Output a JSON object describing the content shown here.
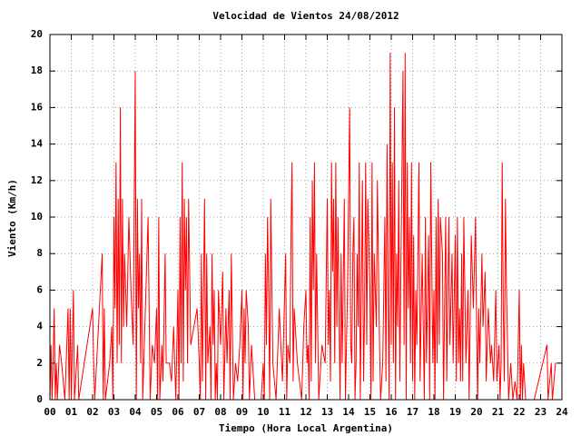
{
  "chart_data": {
    "type": "line",
    "title": "Velocidad de Vientos 24/08/2012",
    "x_label": "Tiempo (Hora Local Argentina)",
    "y_label": "Viento (Km/h)",
    "color": "#ff0000",
    "grid": true,
    "xlim": [
      0,
      24
    ],
    "ylim": [
      0,
      20
    ],
    "xticks": [
      {
        "value": 0,
        "label": "00"
      },
      {
        "value": 1,
        "label": "01"
      },
      {
        "value": 2,
        "label": "02"
      },
      {
        "value": 3,
        "label": "03"
      },
      {
        "value": 4,
        "label": "04"
      },
      {
        "value": 5,
        "label": "05"
      },
      {
        "value": 6,
        "label": "06"
      },
      {
        "value": 7,
        "label": "07"
      },
      {
        "value": 8,
        "label": "08"
      },
      {
        "value": 9,
        "label": "09"
      },
      10,
      11,
      12,
      13,
      14,
      15,
      16,
      17,
      18,
      19,
      20,
      21,
      22,
      23,
      24
    ],
    "yticks": [
      0,
      2,
      4,
      6,
      8,
      10,
      12,
      14,
      16,
      18,
      20
    ],
    "x": [
      0,
      0.05,
      0.1,
      0.15,
      0.2,
      0.25,
      0.3,
      0.35,
      0.45,
      0.55,
      0.7,
      0.85,
      0.9,
      0.95,
      1.0,
      1.05,
      1.1,
      1.15,
      1.3,
      1.35,
      2.0,
      2.05,
      2.1,
      2.45,
      2.5,
      2.55,
      2.6,
      2.8,
      2.9,
      2.95,
      3.0,
      3.05,
      3.1,
      3.15,
      3.2,
      3.25,
      3.3,
      3.35,
      3.4,
      3.45,
      3.5,
      3.6,
      3.7,
      3.8,
      3.9,
      4.0,
      4.05,
      4.1,
      4.15,
      4.2,
      4.25,
      4.3,
      4.35,
      4.6,
      4.7,
      4.8,
      4.9,
      5.0,
      5.05,
      5.1,
      5.15,
      5.25,
      5.3,
      5.4,
      5.45,
      5.6,
      5.7,
      5.8,
      5.9,
      6.0,
      6.05,
      6.1,
      6.15,
      6.2,
      6.25,
      6.3,
      6.35,
      6.4,
      6.45,
      6.5,
      6.6,
      6.9,
      7.0,
      7.05,
      7.1,
      7.15,
      7.2,
      7.25,
      7.3,
      7.35,
      7.4,
      7.5,
      7.55,
      7.6,
      7.65,
      7.7,
      7.75,
      7.8,
      7.85,
      7.9,
      8.0,
      8.1,
      8.15,
      8.25,
      8.3,
      8.4,
      8.45,
      8.5,
      8.6,
      8.7,
      8.8,
      8.9,
      9.0,
      9.05,
      9.1,
      9.15,
      9.2,
      9.3,
      9.35,
      9.45,
      9.6,
      9.9,
      10.0,
      10.05,
      10.1,
      10.15,
      10.2,
      10.25,
      10.3,
      10.35,
      10.45,
      10.6,
      10.75,
      10.9,
      11.05,
      11.1,
      11.15,
      11.25,
      11.3,
      11.35,
      11.4,
      11.45,
      11.6,
      11.8,
      11.9,
      12.0,
      12.05,
      12.1,
      12.15,
      12.2,
      12.25,
      12.3,
      12.35,
      12.4,
      12.45,
      12.5,
      12.6,
      12.75,
      12.9,
      13.0,
      13.05,
      13.1,
      13.15,
      13.2,
      13.25,
      13.3,
      13.35,
      13.4,
      13.45,
      13.5,
      13.6,
      13.65,
      13.7,
      13.8,
      13.85,
      13.95,
      14.05,
      14.1,
      14.15,
      14.2,
      14.25,
      14.3,
      14.35,
      14.4,
      14.45,
      14.5,
      14.55,
      14.6,
      14.65,
      14.7,
      14.75,
      14.8,
      14.85,
      14.9,
      15.0,
      15.05,
      15.1,
      15.15,
      15.2,
      15.3,
      15.35,
      15.45,
      15.5,
      15.6,
      15.7,
      15.75,
      15.8,
      15.85,
      15.9,
      15.95,
      16.0,
      16.05,
      16.1,
      16.15,
      16.2,
      16.25,
      16.3,
      16.35,
      16.4,
      16.45,
      16.55,
      16.6,
      16.65,
      16.7,
      16.75,
      16.8,
      16.85,
      16.9,
      16.95,
      17.0,
      17.05,
      17.1,
      17.15,
      17.2,
      17.3,
      17.35,
      17.45,
      17.5,
      17.55,
      17.6,
      17.65,
      17.75,
      17.8,
      17.85,
      17.95,
      18.0,
      18.05,
      18.1,
      18.15,
      18.2,
      18.25,
      18.3,
      18.4,
      18.45,
      18.55,
      18.6,
      18.7,
      18.75,
      18.85,
      18.9,
      19.0,
      19.05,
      19.1,
      19.15,
      19.2,
      19.25,
      19.3,
      19.35,
      19.4,
      19.5,
      19.6,
      19.65,
      19.75,
      19.85,
      19.95,
      20.0,
      20.05,
      20.1,
      20.15,
      20.25,
      20.3,
      20.4,
      20.45,
      20.55,
      20.65,
      20.7,
      20.8,
      20.9,
      20.95,
      21.05,
      21.1,
      21.15,
      21.2,
      21.25,
      21.3,
      21.35,
      21.4,
      21.45,
      21.5,
      21.6,
      21.7,
      21.8,
      21.9,
      22.0,
      22.05,
      22.1,
      22.15,
      22.2,
      22.3,
      22.7,
      23.3,
      23.35,
      23.5,
      23.55,
      23.7
    ],
    "values": [
      0,
      3,
      0,
      2,
      5,
      0,
      2,
      0,
      3,
      2,
      0,
      5,
      0,
      5,
      0,
      3,
      6,
      0,
      3,
      0,
      5,
      2,
      0,
      8,
      0,
      5,
      0,
      2,
      4,
      0,
      10,
      5,
      13,
      2,
      11,
      3,
      16,
      2,
      11,
      4,
      8,
      4,
      10,
      6,
      3,
      18,
      0,
      11,
      5,
      8,
      2,
      11,
      0,
      10,
      0,
      3,
      2,
      5,
      0,
      10,
      0,
      3,
      1,
      8,
      2,
      2,
      1,
      4,
      0,
      6,
      0,
      10,
      2,
      13,
      1,
      11,
      6,
      10,
      2,
      11,
      3,
      5,
      2,
      0,
      8,
      1,
      6,
      11,
      0,
      8,
      2,
      4,
      0,
      8,
      3,
      6,
      0,
      2,
      0,
      6,
      3,
      7,
      0,
      5,
      2,
      6,
      0,
      8,
      0,
      2,
      1,
      3,
      6,
      0,
      5,
      2,
      6,
      4,
      0,
      3,
      0,
      0,
      2,
      0,
      8,
      3,
      10,
      6,
      0,
      11,
      2,
      0,
      5,
      1,
      8,
      0,
      3,
      2,
      9,
      13,
      1,
      5,
      2,
      0,
      4,
      6,
      2,
      3,
      0,
      10,
      1,
      12,
      6,
      13,
      2,
      8,
      0,
      3,
      2,
      11,
      3,
      6,
      1,
      13,
      7,
      11,
      2,
      13,
      4,
      10,
      0,
      8,
      2,
      11,
      0,
      6,
      16,
      3,
      2,
      8,
      10,
      0,
      2,
      8,
      4,
      13,
      0,
      6,
      12,
      1,
      5,
      13,
      3,
      11,
      6,
      0,
      13,
      1,
      8,
      4,
      12,
      3,
      0,
      2,
      10,
      1,
      14,
      6,
      0,
      19,
      3,
      13,
      2,
      16,
      0,
      8,
      4,
      12,
      1,
      7,
      18,
      3,
      19,
      0,
      13,
      5,
      10,
      2,
      13,
      1,
      9,
      0,
      6,
      3,
      13,
      1,
      8,
      4,
      0,
      10,
      2,
      9,
      0,
      13,
      2,
      6,
      0,
      10,
      2,
      11,
      3,
      10,
      8,
      0,
      10,
      1,
      10,
      3,
      8,
      2,
      9,
      1,
      10,
      2,
      5,
      1,
      8,
      1,
      10,
      2,
      6,
      0,
      9,
      5,
      10,
      4,
      0,
      5,
      2,
      8,
      4,
      7,
      1,
      5,
      2,
      3,
      1,
      6,
      1,
      3,
      0,
      2,
      13,
      5,
      1,
      11,
      6,
      3,
      0,
      2,
      0,
      1,
      0,
      6,
      0,
      3,
      0,
      2,
      0,
      0,
      3,
      0,
      2,
      0,
      2
    ]
  }
}
